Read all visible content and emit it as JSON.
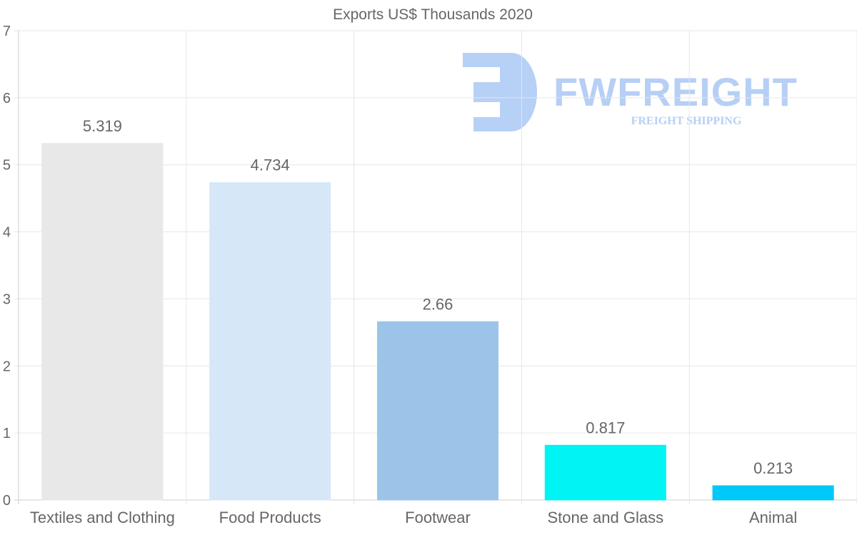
{
  "chart_data": {
    "type": "bar",
    "title": "Exports US$ Thousands 2020",
    "categories": [
      "Textiles and Clothing",
      "Food Products",
      "Footwear",
      "Stone and Glass",
      "Animal"
    ],
    "values": [
      5.319,
      4.734,
      2.66,
      0.817,
      0.213
    ],
    "value_labels": [
      "5.319",
      "4.734",
      "2.66",
      "0.817",
      "0.213"
    ],
    "bar_colors": [
      "#e8e8e8",
      "#d6e7f8",
      "#9cc4e8",
      "#00f4f4",
      "#00c8f8"
    ],
    "ylim": [
      0,
      7
    ],
    "yticks": [
      0,
      1,
      2,
      3,
      4,
      5,
      6,
      7
    ],
    "xlabel": "",
    "ylabel": "",
    "grid": true
  },
  "watermark": {
    "brand": "FWFREIGHT",
    "tagline": "FREIGHT SHIPPING",
    "color": "#b3cdf4"
  }
}
